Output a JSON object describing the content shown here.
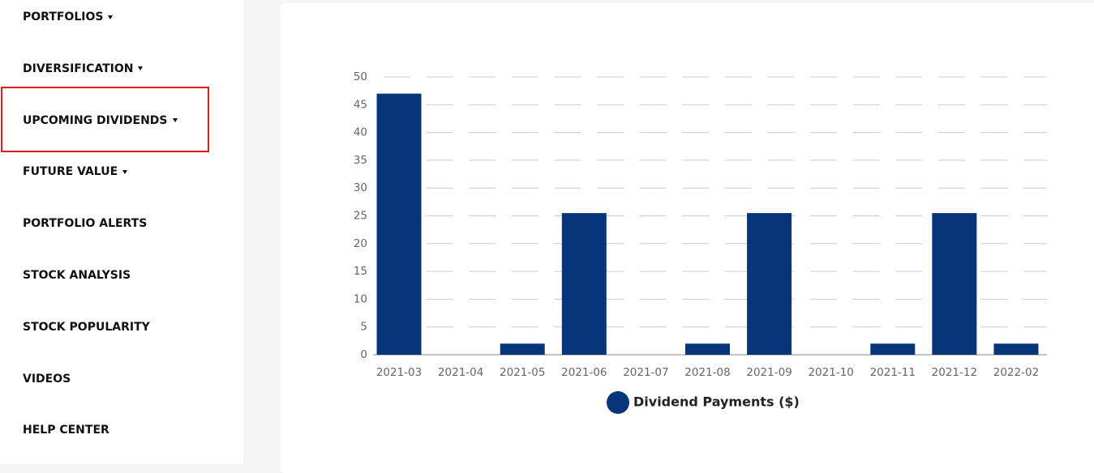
{
  "sidebar": {
    "items": [
      {
        "label": "PORTFOLIOS",
        "dropdown": true
      },
      {
        "label": "DIVERSIFICATION",
        "dropdown": true
      },
      {
        "label": "UPCOMING DIVIDENDS",
        "dropdown": true
      },
      {
        "label": "FUTURE VALUE",
        "dropdown": true
      },
      {
        "label": "PORTFOLIO ALERTS",
        "dropdown": false
      },
      {
        "label": "STOCK ANALYSIS",
        "dropdown": false
      },
      {
        "label": "STOCK POPULARITY",
        "dropdown": false
      },
      {
        "label": "VIDEOS",
        "dropdown": false
      },
      {
        "label": "HELP CENTER",
        "dropdown": false
      }
    ]
  },
  "chart_data": {
    "type": "bar",
    "categories": [
      "2021-03",
      "2021-04",
      "2021-05",
      "2021-06",
      "2021-07",
      "2021-08",
      "2021-09",
      "2021-10",
      "2021-11",
      "2021-12",
      "2022-02"
    ],
    "series": [
      {
        "name": "Dividend Payments ($)",
        "color": "#06357a",
        "values": [
          47,
          0,
          2,
          25.5,
          0,
          2,
          25.5,
          0,
          2,
          25.5,
          2
        ]
      }
    ],
    "ylim": [
      0,
      50
    ],
    "yticks": [
      0,
      5,
      10,
      15,
      20,
      25,
      30,
      35,
      40,
      45,
      50
    ],
    "grid": true
  }
}
